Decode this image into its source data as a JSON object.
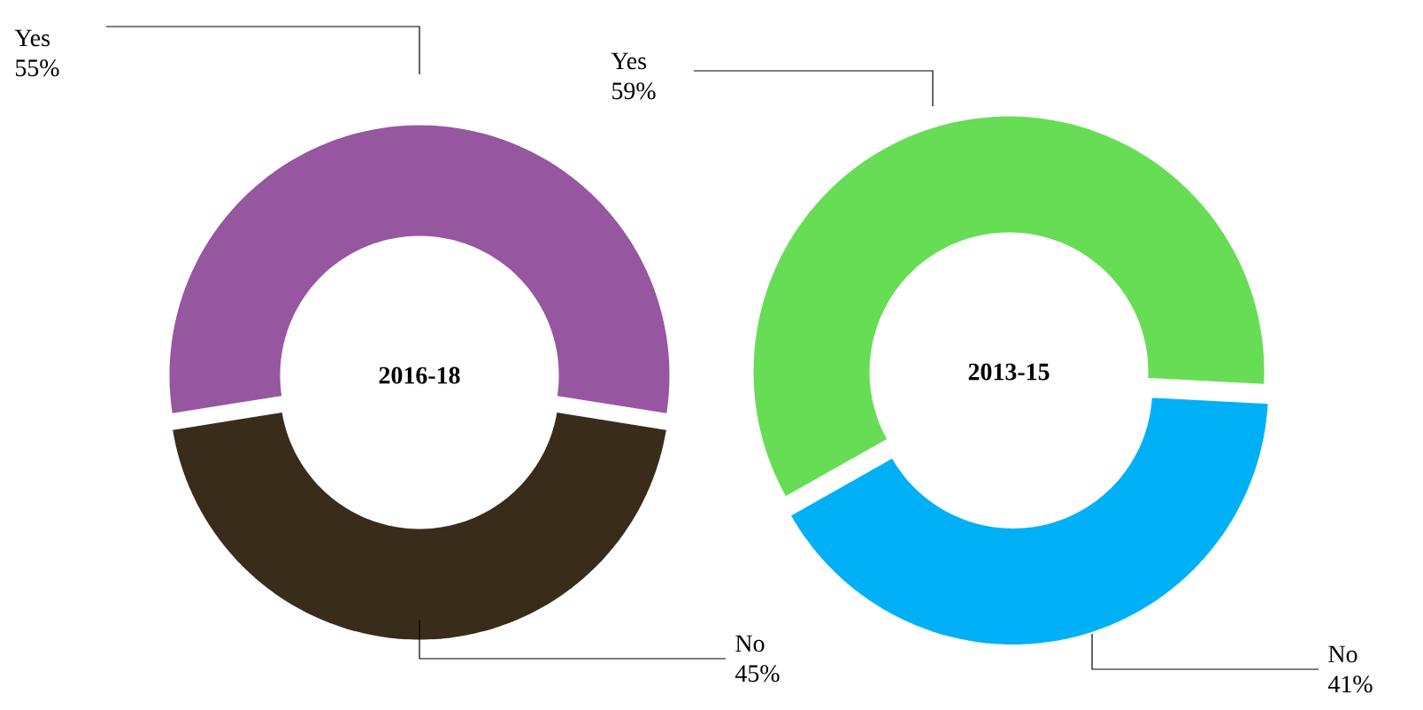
{
  "chart_data": [
    {
      "type": "donut",
      "title": "2016-18",
      "categories": [
        "Yes",
        "No"
      ],
      "values": [
        55,
        45
      ],
      "colors": [
        "#9657a0",
        "#3a2c1a"
      ],
      "value_labels": [
        "55%",
        "45%"
      ]
    },
    {
      "type": "donut",
      "title": "2013-15",
      "categories": [
        "Yes",
        "No"
      ],
      "values": [
        59,
        41
      ],
      "colors": [
        "#66dd55",
        "#00b0f6"
      ],
      "value_labels": [
        "59%",
        "41%"
      ]
    }
  ]
}
